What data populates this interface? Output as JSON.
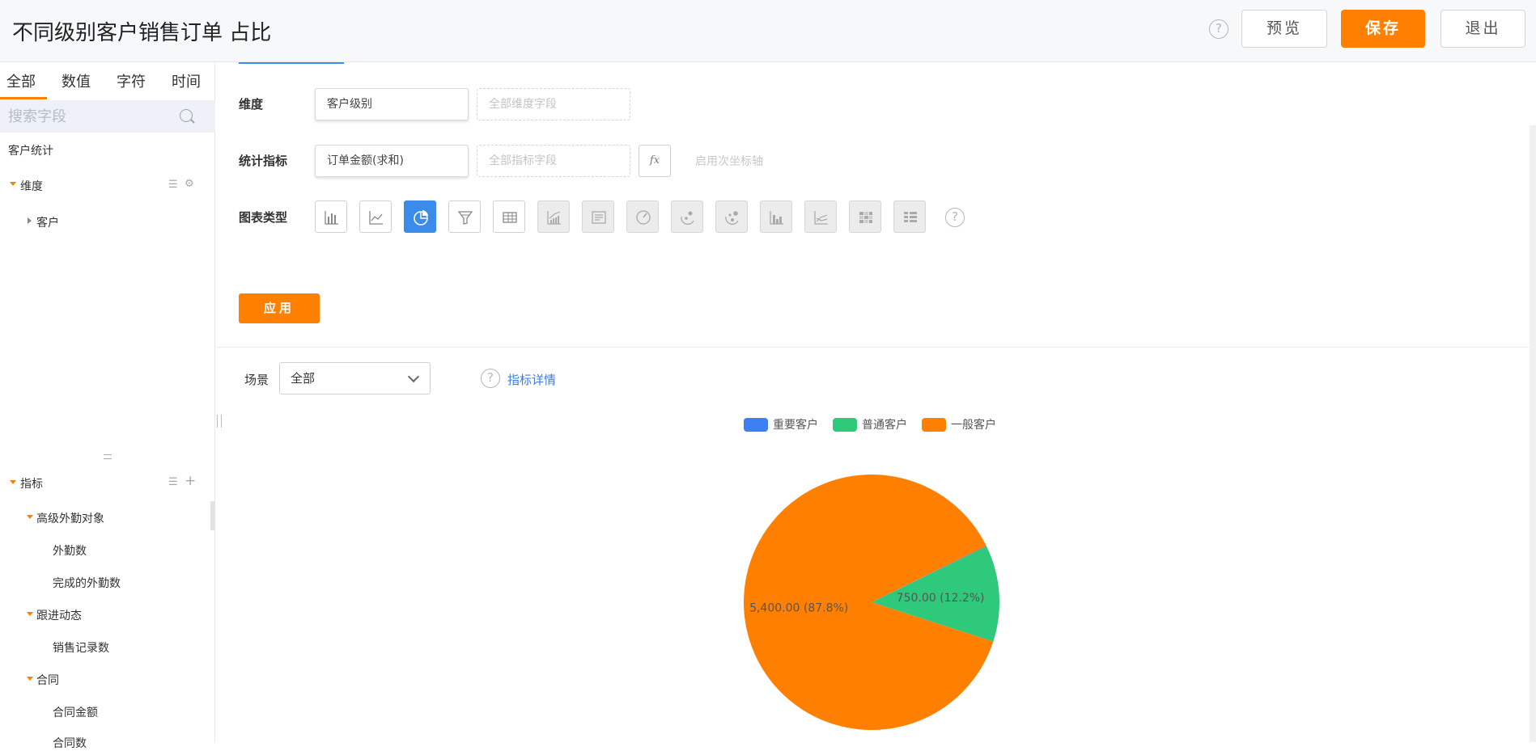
{
  "header": {
    "title": "不同级别客户销售订单 占比",
    "help_symbol": "?",
    "preview_label": "预览",
    "save_label": "保存",
    "exit_label": "退出"
  },
  "sidebar": {
    "tabs": [
      "全部",
      "数值",
      "字符",
      "时间"
    ],
    "active_tab": "全部",
    "search_placeholder": "搜索字段",
    "source_name": "客户统计",
    "dimension_group": "维度",
    "dimension_items": [
      "客户"
    ],
    "metric_group": "指标",
    "metric_tree": [
      {
        "label": "高级外勤对象",
        "children": [
          "外勤数",
          "完成的外勤数"
        ]
      },
      {
        "label": "跟进动态",
        "children": [
          "销售记录数"
        ]
      },
      {
        "label": "合同",
        "children": [
          "合同金额",
          "合同数"
        ]
      }
    ]
  },
  "config": {
    "dimension_label": "维度",
    "dimension_value": "客户级别",
    "dimension_placeholder": "全部维度字段",
    "metric_label": "统计指标",
    "metric_value": "订单金额(求和)",
    "metric_placeholder": "全部指标字段",
    "fx_label": "fx",
    "secondary_axis_label": "启用次坐标轴",
    "chart_type_label": "图表类型",
    "chart_types": [
      "bar",
      "line",
      "pie",
      "funnel",
      "table",
      "stacked-area",
      "text-card",
      "gauge",
      "scatter",
      "bubble",
      "combo-bar",
      "multi-line",
      "heatmap",
      "pivot-table"
    ],
    "active_chart_type": "pie",
    "apply_label": "应用"
  },
  "preview": {
    "scene_label": "场景",
    "scene_value": "全部",
    "detail_link": "指标详情"
  },
  "chart_data": {
    "type": "pie",
    "categories": [
      "重要客户",
      "普通客户",
      "一般客户"
    ],
    "values": [
      4,
      750,
      5400
    ],
    "slice_labels": [
      "",
      "750.00 (12.2%)",
      "5,400.00 (87.8%)"
    ],
    "colors": [
      "#3b7ff0",
      "#2ec97a",
      "#ff8000"
    ],
    "legend_position": "top-center"
  }
}
